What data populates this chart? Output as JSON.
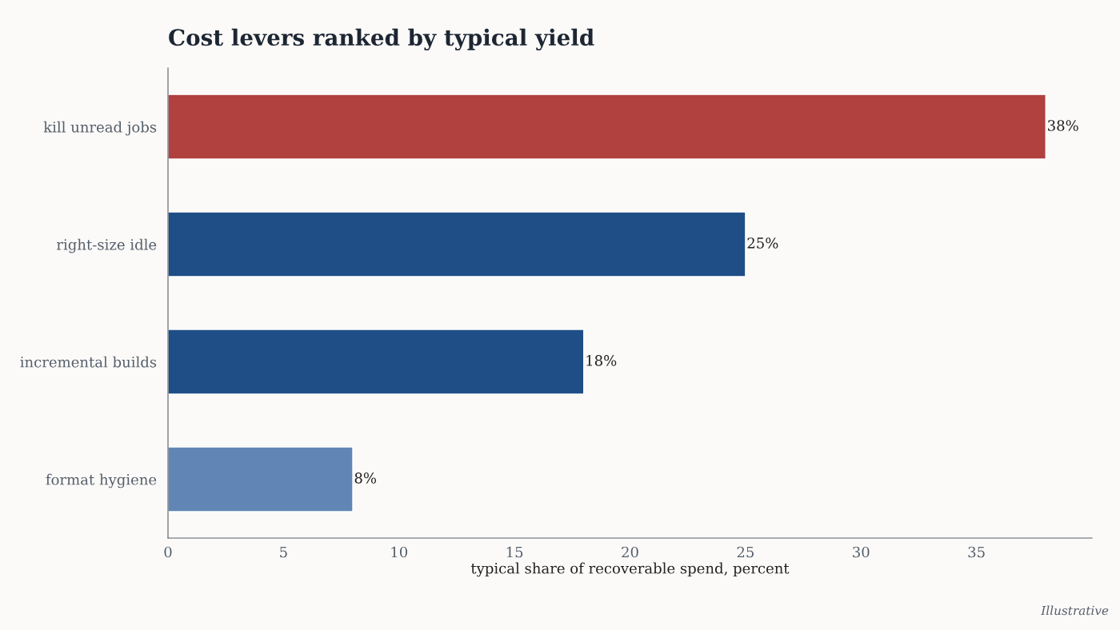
{
  "chart_data": {
    "type": "bar",
    "orientation": "horizontal",
    "title": "Cost levers ranked by typical yield",
    "categories": [
      "kill unread jobs",
      "right-size idle",
      "incremental builds",
      "format hygiene"
    ],
    "values": [
      38,
      25,
      18,
      8
    ],
    "colors": [
      "#b0413e",
      "#1f4e87",
      "#1f4e87",
      "#6186b5"
    ],
    "value_labels": [
      "38%",
      "25%",
      "18%",
      "8%"
    ],
    "xlabel": "typical share of recoverable spend, percent",
    "xlim": [
      0,
      40
    ],
    "xticks": [
      0,
      5,
      10,
      15,
      20,
      25,
      30,
      35
    ],
    "annotations": [
      "Illustrative"
    ]
  }
}
